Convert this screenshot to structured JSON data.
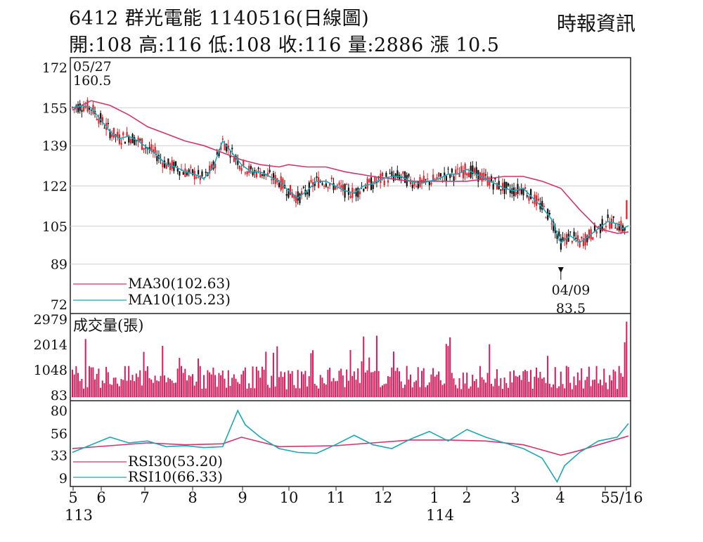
{
  "header": {
    "title": "6412  群光電能 1140516(日線圖)",
    "ohlc": "開:108 高:116 低:108 收:116 量:2886 漲 10.5",
    "source": "時報資訊"
  },
  "colors": {
    "ma30": "#d6336c",
    "ma10": "#1aa7b8",
    "up_candle": "#e0202a",
    "down_candle": "#111111",
    "volume": "#d81b5a",
    "rsi30": "#d6336c",
    "rsi10": "#1aa7b8",
    "grid": "#cfcfcf"
  },
  "chart_data": [
    {
      "type": "candlestick",
      "name": "price",
      "y_ticks": [
        172,
        155,
        139,
        122,
        105,
        89,
        72
      ],
      "ylim": [
        72,
        172
      ],
      "legend": [
        {
          "label": "MA30(102.63)",
          "color_key": "ma30"
        },
        {
          "label": "MA10(105.23)",
          "color_key": "ma10"
        }
      ],
      "annotations": [
        {
          "date": "05/27",
          "value": "160.5"
        },
        {
          "date": "04/09",
          "value": "83.5"
        }
      ],
      "last_bar": {
        "open": 108,
        "high": 116,
        "low": 108,
        "close": 116
      },
      "ma30_path": [
        [
          0,
          154
        ],
        [
          10,
          158
        ],
        [
          20,
          156
        ],
        [
          30,
          152
        ],
        [
          40,
          147
        ],
        [
          50,
          144
        ],
        [
          60,
          141
        ],
        [
          70,
          139
        ],
        [
          80,
          136
        ],
        [
          90,
          133
        ],
        [
          100,
          131
        ],
        [
          110,
          130
        ],
        [
          115,
          131
        ],
        [
          125,
          130
        ],
        [
          135,
          130
        ],
        [
          145,
          128
        ],
        [
          160,
          126
        ],
        [
          170,
          125
        ],
        [
          180,
          124
        ],
        [
          190,
          124
        ],
        [
          200,
          124
        ],
        [
          210,
          124
        ],
        [
          220,
          125
        ],
        [
          230,
          126
        ],
        [
          240,
          126
        ],
        [
          250,
          124
        ],
        [
          260,
          121
        ],
        [
          270,
          112
        ],
        [
          280,
          104
        ],
        [
          290,
          102
        ],
        [
          296,
          102.6
        ]
      ],
      "ma10_path": [
        [
          0,
          155
        ],
        [
          5,
          156
        ],
        [
          10,
          155
        ],
        [
          15,
          150
        ],
        [
          20,
          145
        ],
        [
          25,
          142
        ],
        [
          30,
          143
        ],
        [
          35,
          141
        ],
        [
          40,
          138
        ],
        [
          45,
          135
        ],
        [
          50,
          131
        ],
        [
          55,
          130
        ],
        [
          60,
          128
        ],
        [
          65,
          127
        ],
        [
          70,
          125
        ],
        [
          75,
          130
        ],
        [
          80,
          141
        ],
        [
          85,
          136
        ],
        [
          90,
          131
        ],
        [
          95,
          128
        ],
        [
          100,
          128
        ],
        [
          105,
          126
        ],
        [
          110,
          124
        ],
        [
          115,
          120
        ],
        [
          120,
          117
        ],
        [
          125,
          120
        ],
        [
          130,
          124
        ],
        [
          135,
          124
        ],
        [
          140,
          122
        ],
        [
          145,
          120
        ],
        [
          150,
          119
        ],
        [
          155,
          122
        ],
        [
          160,
          123
        ],
        [
          165,
          125
        ],
        [
          170,
          126
        ],
        [
          175,
          126
        ],
        [
          180,
          124
        ],
        [
          185,
          123
        ],
        [
          190,
          124
        ],
        [
          195,
          125
        ],
        [
          200,
          127
        ],
        [
          205,
          127
        ],
        [
          210,
          129
        ],
        [
          215,
          127
        ],
        [
          220,
          125
        ],
        [
          225,
          123
        ],
        [
          230,
          121
        ],
        [
          235,
          120
        ],
        [
          240,
          121
        ],
        [
          245,
          117
        ],
        [
          250,
          113
        ],
        [
          255,
          108
        ],
        [
          260,
          98
        ],
        [
          265,
          101
        ],
        [
          270,
          98
        ],
        [
          275,
          101
        ],
        [
          280,
          104
        ],
        [
          285,
          107
        ],
        [
          290,
          106
        ],
        [
          293,
          104
        ],
        [
          296,
          105.2
        ]
      ]
    },
    {
      "type": "bar",
      "name": "volume",
      "y_ticks": [
        2979,
        2014,
        1048,
        83
      ],
      "ylim": [
        0,
        2979
      ],
      "legend": [
        {
          "label": "成交量(張)",
          "color_key": "volume"
        }
      ],
      "last_value": 2886
    },
    {
      "type": "line",
      "name": "rsi",
      "y_ticks": [
        80,
        56,
        33,
        9
      ],
      "ylim": [
        0,
        85
      ],
      "legend": [
        {
          "label": "RSI30(53.20)",
          "color_key": "rsi30"
        },
        {
          "label": "RSI10(66.33)",
          "color_key": "rsi10"
        }
      ],
      "rsi30_path": [
        [
          0,
          40
        ],
        [
          20,
          43
        ],
        [
          40,
          46
        ],
        [
          60,
          44
        ],
        [
          80,
          45
        ],
        [
          90,
          52
        ],
        [
          100,
          47
        ],
        [
          110,
          42
        ],
        [
          140,
          43
        ],
        [
          160,
          46
        ],
        [
          180,
          49
        ],
        [
          200,
          49
        ],
        [
          220,
          48
        ],
        [
          240,
          44
        ],
        [
          260,
          33
        ],
        [
          270,
          38
        ],
        [
          280,
          44
        ],
        [
          296,
          53.2
        ]
      ],
      "rsi10_path": [
        [
          0,
          36
        ],
        [
          10,
          44
        ],
        [
          20,
          52
        ],
        [
          30,
          46
        ],
        [
          40,
          48
        ],
        [
          50,
          42
        ],
        [
          60,
          43
        ],
        [
          70,
          41
        ],
        [
          80,
          42
        ],
        [
          88,
          80
        ],
        [
          92,
          65
        ],
        [
          100,
          52
        ],
        [
          110,
          40
        ],
        [
          120,
          36
        ],
        [
          130,
          35
        ],
        [
          140,
          44
        ],
        [
          150,
          54
        ],
        [
          160,
          44
        ],
        [
          170,
          40
        ],
        [
          180,
          50
        ],
        [
          190,
          58
        ],
        [
          200,
          48
        ],
        [
          210,
          60
        ],
        [
          220,
          52
        ],
        [
          230,
          46
        ],
        [
          240,
          40
        ],
        [
          250,
          30
        ],
        [
          258,
          5
        ],
        [
          262,
          22
        ],
        [
          270,
          36
        ],
        [
          280,
          48
        ],
        [
          290,
          52
        ],
        [
          296,
          66.3
        ]
      ]
    }
  ],
  "x_axis": {
    "months": [
      "5",
      "6",
      "7",
      "8",
      "9",
      "10",
      "11",
      "12",
      "1",
      "2",
      "3",
      "4",
      "5",
      "5/16"
    ],
    "years": [
      {
        "label": "113",
        "at_month": "5"
      },
      {
        "label": "114",
        "at_month": "1"
      }
    ]
  }
}
